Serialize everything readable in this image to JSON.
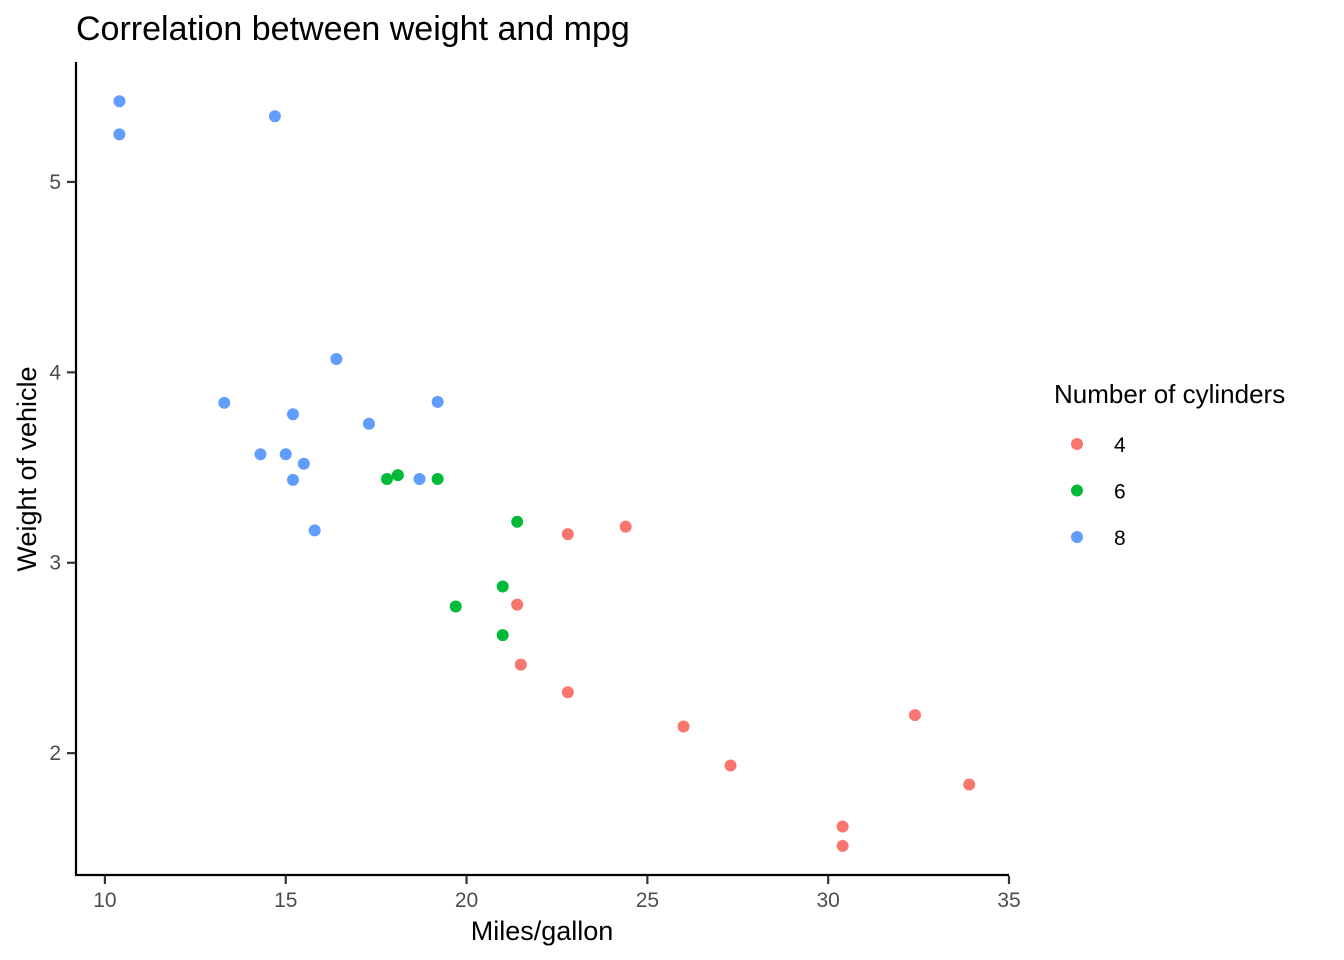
{
  "chart_data": {
    "type": "scatter",
    "title": "Correlation between weight and mpg",
    "xlabel": "Miles/gallon",
    "ylabel": "Weight of vehicle",
    "xlim": [
      9.2,
      35
    ],
    "ylim": [
      1.36,
      5.63
    ],
    "x_ticks": [
      10,
      15,
      20,
      25,
      30,
      35
    ],
    "y_ticks": [
      2,
      3,
      4,
      5
    ],
    "grid": false,
    "legend": {
      "title": "Number of cylinders",
      "placement": "right"
    },
    "series": [
      {
        "name": "4",
        "color": "#F8766D",
        "points": [
          {
            "x": 22.8,
            "y": 2.32
          },
          {
            "x": 24.4,
            "y": 3.19
          },
          {
            "x": 22.8,
            "y": 3.15
          },
          {
            "x": 32.4,
            "y": 2.2
          },
          {
            "x": 30.4,
            "y": 1.615
          },
          {
            "x": 33.9,
            "y": 1.835
          },
          {
            "x": 21.5,
            "y": 2.465
          },
          {
            "x": 27.3,
            "y": 1.935
          },
          {
            "x": 26.0,
            "y": 2.14
          },
          {
            "x": 30.4,
            "y": 1.513
          },
          {
            "x": 21.4,
            "y": 2.78
          }
        ]
      },
      {
        "name": "6",
        "color": "#00BA38",
        "points": [
          {
            "x": 21.0,
            "y": 2.62
          },
          {
            "x": 21.0,
            "y": 2.875
          },
          {
            "x": 21.4,
            "y": 3.215
          },
          {
            "x": 18.1,
            "y": 3.46
          },
          {
            "x": 19.2,
            "y": 3.44
          },
          {
            "x": 17.8,
            "y": 3.44
          },
          {
            "x": 19.7,
            "y": 2.77
          }
        ]
      },
      {
        "name": "8",
        "color": "#619CFF",
        "points": [
          {
            "x": 18.7,
            "y": 3.44
          },
          {
            "x": 14.3,
            "y": 3.57
          },
          {
            "x": 16.4,
            "y": 4.07
          },
          {
            "x": 17.3,
            "y": 3.73
          },
          {
            "x": 15.2,
            "y": 3.78
          },
          {
            "x": 10.4,
            "y": 5.25
          },
          {
            "x": 10.4,
            "y": 5.424
          },
          {
            "x": 14.7,
            "y": 5.345
          },
          {
            "x": 15.5,
            "y": 3.52
          },
          {
            "x": 15.2,
            "y": 3.435
          },
          {
            "x": 13.3,
            "y": 3.84
          },
          {
            "x": 19.2,
            "y": 3.845
          },
          {
            "x": 15.8,
            "y": 3.17
          },
          {
            "x": 15.0,
            "y": 3.57
          }
        ]
      }
    ]
  }
}
